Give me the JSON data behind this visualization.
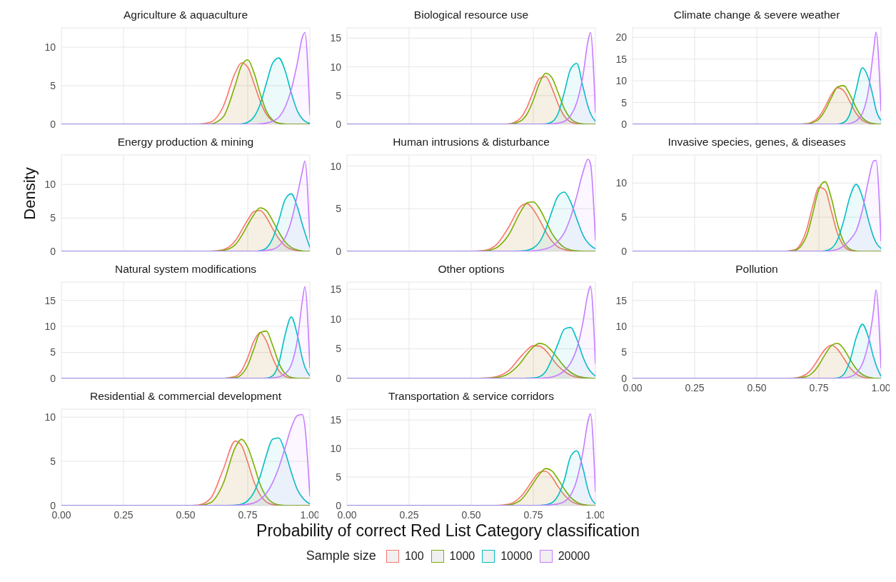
{
  "chart_data": [
    {
      "type": "area",
      "title": "Agriculture & aquaculture",
      "x": [
        0,
        0.5,
        0.55,
        0.6,
        0.65,
        0.7,
        0.725,
        0.75,
        0.775,
        0.8,
        0.825,
        0.85,
        0.875,
        0.9,
        0.925,
        0.95,
        0.97,
        0.98,
        1.0
      ],
      "xlim": [
        0,
        1
      ],
      "xticks": [
        0,
        0.25,
        0.5,
        0.75,
        1
      ],
      "ylim": [
        0,
        12.5
      ],
      "yticks": [
        0,
        5,
        10
      ],
      "grid": true,
      "tick_labels": "y",
      "series": [
        {
          "color": "#f8766d",
          "values": [
            0,
            0,
            0.02,
            0.27,
            2.2,
            6.7,
            7.96,
            7.4,
            5.3,
            3.0,
            1.3,
            0.45,
            0.12,
            0.03,
            0,
            0,
            0,
            0,
            0
          ]
        },
        {
          "color": "#7cae00",
          "values": [
            0,
            0,
            0,
            0.05,
            0.9,
            5.1,
            7.6,
            8.35,
            6.7,
            4.0,
            1.7,
            0.55,
            0.13,
            0.02,
            0,
            0,
            0,
            0,
            0
          ]
        },
        {
          "color": "#00bfc4",
          "values": [
            0,
            0,
            0,
            0,
            0,
            0,
            0.05,
            0.25,
            0.95,
            2.6,
            5.3,
            7.9,
            8.6,
            7.0,
            4.1,
            1.7,
            0.7,
            0.4,
            0.1
          ]
        },
        {
          "color": "#c77cff",
          "values": [
            0,
            0,
            0,
            0,
            0,
            0,
            0,
            0,
            0,
            0.05,
            0.15,
            0.4,
            0.9,
            2.2,
            4.5,
            8,
            11.3,
            11.9,
            1.2
          ]
        }
      ]
    },
    {
      "type": "area",
      "title": "Biological resource use",
      "x": [
        0,
        0.5,
        0.55,
        0.6,
        0.65,
        0.7,
        0.725,
        0.75,
        0.775,
        0.8,
        0.825,
        0.85,
        0.875,
        0.9,
        0.925,
        0.95,
        0.97,
        0.98,
        1.0
      ],
      "xlim": [
        0,
        1
      ],
      "xticks": [
        0,
        0.25,
        0.5,
        0.75,
        1
      ],
      "ylim": [
        0,
        16.8
      ],
      "yticks": [
        0,
        5,
        10,
        15
      ],
      "grid": true,
      "tick_labels": "y",
      "series": [
        {
          "color": "#f8766d",
          "values": [
            0,
            0,
            0,
            0,
            0.07,
            1.15,
            3.0,
            5.7,
            8.0,
            8.3,
            6.3,
            3.5,
            1.4,
            0.4,
            0.09,
            0.01,
            0,
            0,
            0
          ]
        },
        {
          "color": "#7cae00",
          "values": [
            0,
            0,
            0,
            0,
            0.03,
            0.6,
            1.8,
            4.2,
            7.2,
            8.9,
            8.1,
            5.5,
            2.7,
            1.0,
            0.27,
            0.05,
            0,
            0,
            0
          ]
        },
        {
          "color": "#00bfc4",
          "values": [
            0,
            0,
            0,
            0,
            0,
            0,
            0,
            0,
            0,
            0.05,
            0.4,
            1.9,
            5.6,
            9.6,
            10.6,
            6.5,
            3.1,
            1.9,
            0.5
          ]
        },
        {
          "color": "#c77cff",
          "values": [
            0,
            0,
            0,
            0,
            0,
            0,
            0,
            0,
            0,
            0,
            0.05,
            0.2,
            0.5,
            1.5,
            3.8,
            8.5,
            14.5,
            16,
            2
          ]
        }
      ]
    },
    {
      "type": "area",
      "title": "Climate change & severe weather",
      "x": [
        0,
        0.5,
        0.55,
        0.6,
        0.65,
        0.7,
        0.725,
        0.75,
        0.775,
        0.8,
        0.825,
        0.85,
        0.875,
        0.9,
        0.925,
        0.95,
        0.97,
        0.98,
        1.0
      ],
      "xlim": [
        0,
        1
      ],
      "xticks": [
        0,
        0.25,
        0.5,
        0.75,
        1
      ],
      "ylim": [
        0,
        22.2
      ],
      "yticks": [
        0,
        5,
        10,
        15,
        20
      ],
      "grid": true,
      "tick_labels": "y",
      "series": [
        {
          "color": "#f8766d",
          "values": [
            0,
            0,
            0,
            0,
            0.01,
            0.12,
            0.6,
            1.7,
            4.0,
            6.8,
            8.4,
            7.7,
            5.2,
            2.5,
            0.9,
            0.26,
            0.07,
            0.03,
            0
          ]
        },
        {
          "color": "#7cae00",
          "values": [
            0,
            0,
            0,
            0,
            0,
            0.07,
            0.35,
            1.2,
            3.2,
            6.1,
            8.6,
            8.9,
            6.8,
            3.8,
            1.5,
            0.45,
            0.14,
            0.06,
            0
          ]
        },
        {
          "color": "#00bfc4",
          "values": [
            0,
            0,
            0,
            0,
            0,
            0,
            0,
            0,
            0,
            0,
            0.03,
            0.4,
            2.4,
            8.0,
            13.0,
            10.5,
            5.9,
            3.3,
            0.9
          ]
        },
        {
          "color": "#c77cff",
          "values": [
            0,
            0,
            0,
            0,
            0,
            0,
            0,
            0,
            0,
            0,
            0,
            0,
            0.2,
            0.8,
            2.5,
            8,
            17,
            21.2,
            3
          ]
        }
      ]
    },
    {
      "type": "area",
      "title": "Energy production & mining",
      "ylabel": "Density",
      "x": [
        0,
        0.5,
        0.55,
        0.6,
        0.65,
        0.7,
        0.725,
        0.75,
        0.775,
        0.8,
        0.825,
        0.85,
        0.875,
        0.9,
        0.925,
        0.95,
        0.97,
        0.98,
        1.0
      ],
      "xlim": [
        0,
        1
      ],
      "xticks": [
        0,
        0.25,
        0.5,
        0.75,
        1
      ],
      "ylim": [
        0,
        14.4
      ],
      "yticks": [
        0,
        5,
        10
      ],
      "grid": true,
      "tick_labels": "y",
      "series": [
        {
          "color": "#f8766d",
          "values": [
            0,
            0,
            0,
            0.02,
            0.25,
            1.6,
            3.1,
            4.7,
            5.95,
            6.1,
            5.1,
            3.4,
            1.9,
            0.85,
            0.31,
            0.1,
            0.03,
            0,
            0
          ]
        },
        {
          "color": "#7cae00",
          "values": [
            0,
            0,
            0,
            0.01,
            0.13,
            1.0,
            2.3,
            3.95,
            5.5,
            6.5,
            6.1,
            4.6,
            2.9,
            1.45,
            0.6,
            0.2,
            0.06,
            0.03,
            0
          ]
        },
        {
          "color": "#00bfc4",
          "values": [
            0,
            0,
            0,
            0,
            0,
            0,
            0,
            0,
            0,
            0.1,
            0.5,
            1.9,
            4.6,
            7.7,
            8.6,
            6.6,
            4.0,
            2.8,
            0.6
          ]
        },
        {
          "color": "#c77cff",
          "values": [
            0,
            0,
            0,
            0,
            0,
            0,
            0,
            0,
            0,
            0.05,
            0.15,
            0.3,
            0.8,
            2,
            4.5,
            8.5,
            12,
            13.5,
            1.8
          ]
        }
      ]
    },
    {
      "type": "area",
      "title": "Human intrusions & disturbance",
      "x": [
        0,
        0.5,
        0.55,
        0.6,
        0.65,
        0.7,
        0.725,
        0.75,
        0.775,
        0.8,
        0.825,
        0.85,
        0.875,
        0.9,
        0.925,
        0.95,
        0.97,
        0.98,
        1.0
      ],
      "xlim": [
        0,
        1
      ],
      "xticks": [
        0,
        0.25,
        0.5,
        0.75,
        1
      ],
      "ylim": [
        0,
        11.3
      ],
      "yticks": [
        0,
        5,
        10
      ],
      "grid": true,
      "tick_labels": "y",
      "series": [
        {
          "color": "#f8766d",
          "values": [
            0,
            0.02,
            0.1,
            0.75,
            2.8,
            5.3,
            5.6,
            4.9,
            3.7,
            2.3,
            1.2,
            0.5,
            0.2,
            0.06,
            0.02,
            0,
            0,
            0,
            0
          ]
        },
        {
          "color": "#7cae00",
          "values": [
            0,
            0.01,
            0.04,
            0.4,
            1.9,
            4.7,
            5.7,
            5.8,
            5.0,
            3.6,
            2.1,
            1.1,
            0.45,
            0.17,
            0.05,
            0.01,
            0,
            0,
            0
          ]
        },
        {
          "color": "#00bfc4",
          "values": [
            0,
            0,
            0,
            0,
            0,
            0.04,
            0.12,
            0.4,
            1.1,
            2.6,
            4.7,
            6.5,
            6.95,
            5.8,
            3.8,
            1.9,
            1.0,
            0.7,
            0.3
          ]
        },
        {
          "color": "#c77cff",
          "values": [
            0,
            0,
            0,
            0,
            0,
            0,
            0,
            0.05,
            0.15,
            0.3,
            0.6,
            1.2,
            2.2,
            4,
            6.5,
            9.3,
            10.8,
            10.3,
            1.3
          ]
        }
      ]
    },
    {
      "type": "area",
      "title": "Invasive species, genes, & diseases",
      "x": [
        0,
        0.5,
        0.55,
        0.6,
        0.65,
        0.7,
        0.725,
        0.75,
        0.775,
        0.8,
        0.825,
        0.85,
        0.875,
        0.9,
        0.925,
        0.95,
        0.97,
        0.98,
        1.0
      ],
      "xlim": [
        0,
        1
      ],
      "xticks": [
        0,
        0.25,
        0.5,
        0.75,
        1
      ],
      "ylim": [
        0,
        14.1
      ],
      "yticks": [
        0,
        5,
        10
      ],
      "grid": true,
      "tick_labels": "y",
      "series": [
        {
          "color": "#f8766d",
          "values": [
            0,
            0,
            0,
            0,
            0.2,
            3.1,
            6.6,
            9.4,
            9.0,
            5.9,
            2.6,
            0.8,
            0.15,
            0.03,
            0,
            0,
            0,
            0,
            0
          ]
        },
        {
          "color": "#7cae00",
          "values": [
            0,
            0,
            0,
            0,
            0.1,
            2.2,
            5.5,
            9.1,
            10.2,
            7.8,
            4.0,
            1.4,
            0.33,
            0.06,
            0,
            0,
            0,
            0,
            0
          ]
        },
        {
          "color": "#00bfc4",
          "values": [
            0,
            0,
            0,
            0,
            0,
            0,
            0,
            0,
            0.08,
            0.43,
            1.7,
            4.5,
            8.0,
            9.8,
            8.0,
            4.5,
            2.1,
            1.3,
            0.4
          ]
        },
        {
          "color": "#c77cff",
          "values": [
            0,
            0,
            0,
            0,
            0,
            0,
            0,
            0,
            0,
            0.1,
            0.3,
            0.8,
            1.7,
            3,
            6,
            10.5,
            13.2,
            13.3,
            1.5
          ]
        }
      ]
    },
    {
      "type": "area",
      "title": "Natural system modifications",
      "x": [
        0,
        0.5,
        0.55,
        0.6,
        0.65,
        0.7,
        0.725,
        0.75,
        0.775,
        0.8,
        0.825,
        0.85,
        0.875,
        0.9,
        0.925,
        0.95,
        0.97,
        0.98,
        1.0
      ],
      "xlim": [
        0,
        1
      ],
      "xticks": [
        0,
        0.25,
        0.5,
        0.75,
        1
      ],
      "ylim": [
        0,
        18.5
      ],
      "yticks": [
        0,
        5,
        10,
        15
      ],
      "grid": true,
      "tick_labels": "y",
      "series": [
        {
          "color": "#f8766d",
          "values": [
            0,
            0,
            0,
            0,
            0.01,
            0.4,
            1.5,
            4.0,
            7.2,
            8.8,
            7.2,
            4.0,
            1.5,
            0.4,
            0.07,
            0.01,
            0,
            0,
            0
          ]
        },
        {
          "color": "#7cae00",
          "values": [
            0,
            0,
            0,
            0,
            0,
            0.15,
            0.75,
            2.5,
            5.7,
            8.8,
            9.1,
            6.4,
            3.0,
            0.95,
            0.2,
            0.03,
            0,
            0,
            0
          ]
        },
        {
          "color": "#00bfc4",
          "values": [
            0,
            0,
            0,
            0,
            0,
            0,
            0,
            0,
            0,
            0,
            0.05,
            0.5,
            2.9,
            8.3,
            11.8,
            8.3,
            3.8,
            2.2,
            0.5
          ]
        },
        {
          "color": "#c77cff",
          "values": [
            0,
            0,
            0,
            0,
            0,
            0,
            0,
            0,
            0,
            0,
            0,
            0.1,
            0.3,
            0.9,
            2.6,
            7.5,
            15,
            17.6,
            2
          ]
        }
      ]
    },
    {
      "type": "area",
      "title": "Other options",
      "x": [
        0,
        0.5,
        0.55,
        0.6,
        0.65,
        0.7,
        0.725,
        0.75,
        0.775,
        0.8,
        0.825,
        0.85,
        0.875,
        0.9,
        0.925,
        0.95,
        0.97,
        0.98,
        1.0
      ],
      "xlim": [
        0,
        1
      ],
      "xticks": [
        0,
        0.25,
        0.5,
        0.75,
        1
      ],
      "ylim": [
        0,
        16.2
      ],
      "yticks": [
        0,
        5,
        10,
        15
      ],
      "grid": true,
      "tick_labels": "y",
      "series": [
        {
          "color": "#f8766d",
          "values": [
            0,
            0,
            0.04,
            0.3,
            1.3,
            3.7,
            4.8,
            5.5,
            5.45,
            4.7,
            3.4,
            2.1,
            1.2,
            0.55,
            0.22,
            0.08,
            0.03,
            0.02,
            0
          ]
        },
        {
          "color": "#7cae00",
          "values": [
            0,
            0,
            0.02,
            0.15,
            0.8,
            2.7,
            4.1,
            5.3,
            5.9,
            5.6,
            4.6,
            3.3,
            2.0,
            1.05,
            0.45,
            0.18,
            0.07,
            0.04,
            0
          ]
        },
        {
          "color": "#00bfc4",
          "values": [
            0,
            0,
            0,
            0,
            0,
            0.01,
            0.05,
            0.08,
            0.3,
            1.2,
            3.3,
            5.9,
            8.3,
            8.6,
            6.6,
            3.6,
            1.8,
            1.2,
            0.4
          ]
        },
        {
          "color": "#c77cff",
          "values": [
            0,
            0,
            0,
            0,
            0,
            0,
            0,
            0,
            0,
            0.1,
            0.25,
            0.6,
            1.3,
            2.6,
            5,
            9.5,
            14.3,
            15.5,
            2.5
          ]
        }
      ]
    },
    {
      "type": "area",
      "title": "Pollution",
      "x": [
        0,
        0.5,
        0.55,
        0.6,
        0.65,
        0.7,
        0.725,
        0.75,
        0.775,
        0.8,
        0.825,
        0.85,
        0.875,
        0.9,
        0.925,
        0.95,
        0.97,
        0.98,
        1.0
      ],
      "xlim": [
        0,
        1
      ],
      "xticks": [
        {
          "value": 0,
          "label": "0.00"
        },
        {
          "value": 0.25,
          "label": "0.25"
        },
        {
          "value": 0.5,
          "label": "0.50"
        },
        {
          "value": 0.75,
          "label": "0.75"
        },
        {
          "value": 1,
          "label": "1.00"
        }
      ],
      "ylim": [
        0,
        18.5
      ],
      "yticks": [
        0,
        5,
        10,
        15
      ],
      "grid": true,
      "series": [
        {
          "color": "#f8766d",
          "values": [
            0,
            0,
            0,
            0.01,
            0.07,
            0.86,
            2.1,
            3.9,
            5.6,
            6.4,
            5.6,
            3.9,
            2.1,
            0.86,
            0.28,
            0.07,
            0.02,
            0,
            0
          ]
        },
        {
          "color": "#7cae00",
          "values": [
            0,
            0,
            0,
            0,
            0.03,
            0.38,
            1.1,
            2.6,
            4.6,
            6.3,
            6.75,
            5.7,
            3.7,
            1.9,
            0.75,
            0.23,
            0.07,
            0.03,
            0
          ]
        },
        {
          "color": "#00bfc4",
          "values": [
            0,
            0,
            0,
            0,
            0,
            0,
            0,
            0,
            0,
            0.01,
            0.11,
            0.8,
            3.4,
            7.8,
            10.4,
            7.8,
            4.1,
            2.6,
            0.4
          ]
        },
        {
          "color": "#c77cff",
          "values": [
            0,
            0,
            0,
            0,
            0,
            0,
            0,
            0,
            0,
            0,
            0,
            0.1,
            0.3,
            1,
            2.8,
            7,
            13,
            17,
            2
          ]
        }
      ]
    },
    {
      "type": "area",
      "title": "Residential & commercial development",
      "x": [
        0,
        0.5,
        0.55,
        0.6,
        0.65,
        0.7,
        0.725,
        0.75,
        0.775,
        0.8,
        0.825,
        0.85,
        0.875,
        0.9,
        0.925,
        0.95,
        0.97,
        0.98,
        1.0
      ],
      "xlim": [
        0,
        1
      ],
      "xticks": [
        {
          "value": 0,
          "label": "0.00"
        },
        {
          "value": 0.25,
          "label": "0.25"
        },
        {
          "value": 0.5,
          "label": "0.50"
        },
        {
          "value": 0.75,
          "label": "0.75"
        },
        {
          "value": 1,
          "label": "1.00"
        }
      ],
      "ylim": [
        0,
        10.9
      ],
      "yticks": [
        0,
        5,
        10
      ],
      "grid": true,
      "series": [
        {
          "color": "#f8766d",
          "values": [
            0,
            0,
            0.06,
            0.8,
            4.0,
            7.3,
            6.8,
            4.9,
            2.7,
            1.2,
            0.42,
            0.11,
            0.02,
            0,
            0,
            0,
            0,
            0,
            0
          ]
        },
        {
          "color": "#7cae00",
          "values": [
            0,
            0,
            0.02,
            0.33,
            2.4,
            6.6,
            7.5,
            6.6,
            4.6,
            2.4,
            1.0,
            0.33,
            0.08,
            0.02,
            0,
            0,
            0,
            0,
            0
          ]
        },
        {
          "color": "#00bfc4",
          "values": [
            0,
            0,
            0,
            0,
            0.01,
            0.05,
            0.15,
            0.55,
            1.5,
            3.3,
            5.7,
            7.5,
            7.65,
            6.1,
            3.8,
            1.8,
            0.9,
            0.6,
            0.2
          ]
        },
        {
          "color": "#c77cff",
          "values": [
            0,
            0,
            0,
            0,
            0,
            0.02,
            0.07,
            0.15,
            0.3,
            0.7,
            1.4,
            2.6,
            4.3,
            6.5,
            8.8,
            10.2,
            10.3,
            9,
            1.1
          ]
        }
      ]
    },
    {
      "type": "area",
      "title": "Transportation & service corridors",
      "xlabel": "Probability of correct Red List Category classification",
      "legend": "bottom",
      "legend_title": "Sample size",
      "x": [
        0,
        0.5,
        0.55,
        0.6,
        0.65,
        0.7,
        0.725,
        0.75,
        0.775,
        0.8,
        0.825,
        0.85,
        0.875,
        0.9,
        0.925,
        0.95,
        0.97,
        0.98,
        1.0
      ],
      "xlim": [
        0,
        1
      ],
      "xticks": [
        {
          "value": 0,
          "label": "0.00"
        },
        {
          "value": 0.25,
          "label": "0.25"
        },
        {
          "value": 0.5,
          "label": "0.50"
        },
        {
          "value": 0.75,
          "label": "0.75"
        },
        {
          "value": 1,
          "label": "1.00"
        }
      ],
      "ylim": [
        0,
        16.9
      ],
      "yticks": [
        0,
        5,
        10,
        15
      ],
      "grid": true,
      "series": [
        {
          "name": "100",
          "color": "#f8766d",
          "values": [
            0,
            0,
            0,
            0.02,
            0.24,
            1.6,
            3.0,
            4.6,
            5.85,
            6.0,
            5.0,
            3.3,
            1.85,
            0.83,
            0.3,
            0.1,
            0.03,
            0,
            0
          ]
        },
        {
          "name": "1000",
          "color": "#7cae00",
          "values": [
            0,
            0,
            0,
            0.01,
            0.13,
            1.0,
            2.3,
            3.95,
            5.5,
            6.5,
            6.1,
            4.6,
            2.9,
            1.45,
            0.6,
            0.2,
            0.06,
            0.03,
            0
          ]
        },
        {
          "name": "10000",
          "color": "#00bfc4",
          "values": [
            0,
            0,
            0,
            0,
            0,
            0,
            0,
            0,
            0.03,
            0.15,
            0.5,
            1.8,
            4.5,
            8.6,
            9.6,
            6.5,
            2.8,
            1.5,
            0.3
          ]
        },
        {
          "name": "20000",
          "color": "#c77cff",
          "values": [
            0,
            0,
            0,
            0,
            0,
            0,
            0,
            0,
            0,
            0.05,
            0.15,
            0.3,
            0.7,
            1.8,
            4.5,
            9.5,
            14.8,
            16.1,
            2.4
          ]
        }
      ]
    }
  ]
}
